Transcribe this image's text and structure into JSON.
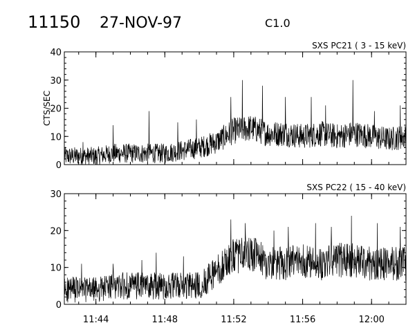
{
  "header": {
    "event_id": "11150",
    "date": "27-NOV-97",
    "goes_class": "C1.0"
  },
  "chart_data": [
    {
      "type": "line",
      "title": "SXS PC21  (  3 - 15 keV)",
      "ylabel": "CTS/SEC",
      "xlabel": "",
      "ylim": [
        0,
        40
      ],
      "yticks": [
        0,
        10,
        20,
        30,
        40
      ],
      "xlim": [
        "11:42:10",
        "12:02:00"
      ],
      "xticks": [
        "11:44",
        "11:48",
        "11:52",
        "11:56",
        "12:00"
      ],
      "grid": false,
      "series": [
        {
          "x": [
            "11:42",
            "11:43",
            "11:44",
            "11:45",
            "11:46",
            "11:47",
            "11:48",
            "11:49",
            "11:50",
            "11:51",
            "11:52",
            "11:53",
            "11:54",
            "11:55",
            "11:56",
            "11:57",
            "11:58",
            "11:59",
            "12:00",
            "12:01",
            "12:02"
          ],
          "mean": [
            3,
            3,
            3,
            4,
            4,
            4,
            4,
            5,
            6,
            8,
            12,
            13,
            11,
            11,
            10,
            11,
            10,
            11,
            10,
            9,
            10
          ],
          "peaks": [
            {
              "x": "11:43:15",
              "y": 8
            },
            {
              "x": "11:45:00",
              "y": 14
            },
            {
              "x": "11:47:05",
              "y": 19
            },
            {
              "x": "11:48:45",
              "y": 15
            },
            {
              "x": "11:49:50",
              "y": 16
            },
            {
              "x": "11:51:50",
              "y": 24
            },
            {
              "x": "11:52:30",
              "y": 30
            },
            {
              "x": "11:53:40",
              "y": 28
            },
            {
              "x": "11:55:00",
              "y": 24
            },
            {
              "x": "11:56:30",
              "y": 24
            },
            {
              "x": "11:57:20",
              "y": 21
            },
            {
              "x": "11:58:55",
              "y": 30
            },
            {
              "x": "12:00:10",
              "y": 19
            },
            {
              "x": "12:01:40",
              "y": 21
            }
          ]
        }
      ]
    },
    {
      "type": "line",
      "title": "SXS PC22  ( 15 - 40 keV)",
      "ylabel": "",
      "xlabel": "",
      "ylim": [
        0,
        30
      ],
      "yticks": [
        0,
        10,
        20,
        30
      ],
      "xlim": [
        "11:42:10",
        "12:02:00"
      ],
      "xticks": [
        "11:44",
        "11:48",
        "11:52",
        "11:56",
        "12:00"
      ],
      "grid": false,
      "series": [
        {
          "x": [
            "11:42",
            "11:43",
            "11:44",
            "11:45",
            "11:46",
            "11:47",
            "11:48",
            "11:49",
            "11:50",
            "11:51",
            "11:52",
            "11:53",
            "11:54",
            "11:55",
            "11:56",
            "11:57",
            "11:58",
            "11:59",
            "12:00",
            "12:01",
            "12:02"
          ],
          "mean": [
            4,
            4,
            4,
            5,
            5,
            5,
            5,
            5,
            5,
            9,
            13,
            14,
            11,
            11,
            12,
            11,
            12,
            12,
            11,
            11,
            11
          ],
          "peaks": [
            {
              "x": "11:43:10",
              "y": 11
            },
            {
              "x": "11:45:00",
              "y": 11
            },
            {
              "x": "11:46:40",
              "y": 12
            },
            {
              "x": "11:47:30",
              "y": 14
            },
            {
              "x": "11:49:05",
              "y": 13
            },
            {
              "x": "11:50:30",
              "y": 10
            },
            {
              "x": "11:51:50",
              "y": 23
            },
            {
              "x": "11:52:40",
              "y": 22
            },
            {
              "x": "11:54:20",
              "y": 20
            },
            {
              "x": "11:55:10",
              "y": 21
            },
            {
              "x": "11:56:45",
              "y": 22
            },
            {
              "x": "11:57:40",
              "y": 21
            },
            {
              "x": "11:58:50",
              "y": 24
            },
            {
              "x": "12:00:20",
              "y": 22
            },
            {
              "x": "12:01:40",
              "y": 21
            }
          ]
        }
      ]
    }
  ]
}
